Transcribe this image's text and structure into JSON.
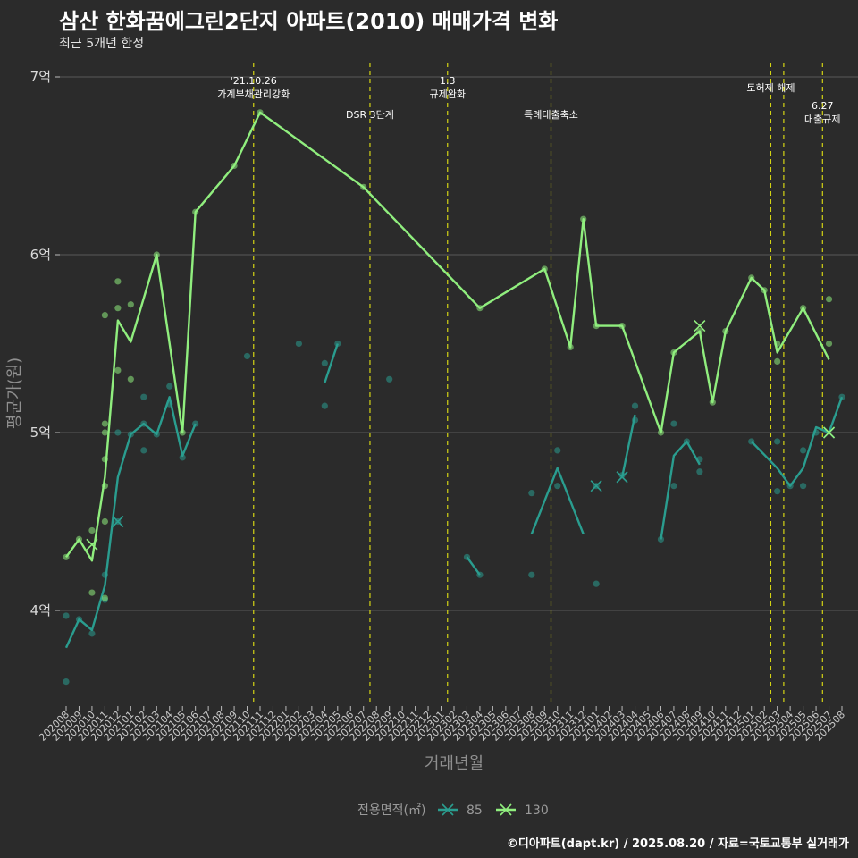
{
  "title": "삼산 한화꿈에그린2단지 아파트(2010) 매매가격 변화",
  "subtitle": "최근 5개년 한정",
  "caption": "©디아파트(dapt.kr) / 2025.08.20 / 자료=국토교통부 실거래가",
  "colors": {
    "s85": "#2a9d8f",
    "s130": "#90ee7e",
    "vline": "#d4d414",
    "grid": "#5a5a5a"
  },
  "chart_data": {
    "type": "line",
    "xlabel": "거래년월",
    "ylabel": "평균가(원)",
    "ylim": [
      3.45,
      7.05
    ],
    "yticks": [
      {
        "value": 4,
        "label": "4억"
      },
      {
        "value": 5,
        "label": "5억"
      },
      {
        "value": 6,
        "label": "6억"
      },
      {
        "value": 7,
        "label": "7억"
      }
    ],
    "categories": [
      "202008",
      "202009",
      "202010",
      "202011",
      "202012",
      "202101",
      "202102",
      "202103",
      "202104",
      "202105",
      "202106",
      "202107",
      "202108",
      "202109",
      "202110",
      "202111",
      "202112",
      "202201",
      "202202",
      "202203",
      "202204",
      "202205",
      "202206",
      "202207",
      "202208",
      "202209",
      "202210",
      "202211",
      "202212",
      "202301",
      "202302",
      "202303",
      "202304",
      "202305",
      "202306",
      "202307",
      "202308",
      "202309",
      "202310",
      "202311",
      "202312",
      "202401",
      "202402",
      "202403",
      "202404",
      "202405",
      "202406",
      "202407",
      "202408",
      "202409",
      "202410",
      "202411",
      "202412",
      "202501",
      "202502",
      "202503",
      "202504",
      "202505",
      "202506",
      "202507",
      "202508"
    ],
    "legend": {
      "title": "전용면적(㎡)"
    },
    "series": [
      {
        "name": "85",
        "line": [
          [
            [
              "202008",
              3.79
            ],
            [
              "202009",
              3.95
            ],
            [
              "202010",
              3.89
            ],
            [
              "202011",
              4.14
            ],
            [
              "202012",
              4.75
            ],
            [
              "202101",
              4.99
            ],
            [
              "202102",
              5.05
            ],
            [
              "202103",
              4.99
            ],
            [
              "202104",
              5.2
            ],
            [
              "202105",
              4.87
            ],
            [
              "202106",
              5.05
            ]
          ],
          [
            [
              "202204",
              5.28
            ],
            [
              "202205",
              5.5
            ]
          ],
          [
            [
              "202303",
              4.3
            ],
            [
              "202304",
              4.2
            ]
          ],
          [
            [
              "202308",
              4.43
            ],
            [
              "202310",
              4.8
            ],
            [
              "202312",
              4.43
            ]
          ],
          [
            [
              "202401",
              4.7
            ]
          ],
          [
            [
              "202403",
              4.75
            ],
            [
              "202404",
              5.1
            ]
          ],
          [
            [
              "202406",
              4.4
            ],
            [
              "202407",
              4.87
            ],
            [
              "202408",
              4.95
            ],
            [
              "202409",
              4.82
            ]
          ],
          [
            [
              "202501",
              4.95
            ],
            [
              "202503",
              4.8
            ],
            [
              "202504",
              4.7
            ],
            [
              "202505",
              4.8
            ],
            [
              "202506",
              5.03
            ],
            [
              "202507",
              5.0
            ],
            [
              "202508",
              5.2
            ]
          ]
        ],
        "points": [
          [
            "202008",
            3.97
          ],
          [
            "202008",
            3.6
          ],
          [
            "202009",
            3.95
          ],
          [
            "202010",
            3.87
          ],
          [
            "202011",
            4.2
          ],
          [
            "202011",
            4.06
          ],
          [
            "202012",
            4.5
          ],
          [
            "202012",
            5.0
          ],
          [
            "202101",
            4.99
          ],
          [
            "202102",
            5.2
          ],
          [
            "202102",
            4.9
          ],
          [
            "202102",
            5.05
          ],
          [
            "202103",
            4.99
          ],
          [
            "202104",
            5.26
          ],
          [
            "202104",
            5.16
          ],
          [
            "202105",
            4.86
          ],
          [
            "202106",
            5.05
          ],
          [
            "202110",
            5.43
          ],
          [
            "202202",
            5.5
          ],
          [
            "202204",
            5.39
          ],
          [
            "202204",
            5.15
          ],
          [
            "202205",
            5.5
          ],
          [
            "202209",
            5.3
          ],
          [
            "202303",
            4.3
          ],
          [
            "202304",
            4.2
          ],
          [
            "202308",
            4.66
          ],
          [
            "202308",
            4.2
          ],
          [
            "202310",
            4.7
          ],
          [
            "202310",
            4.9
          ],
          [
            "202401",
            4.15
          ],
          [
            "202401",
            4.7
          ],
          [
            "202403",
            4.76
          ],
          [
            "202404",
            5.07
          ],
          [
            "202404",
            5.15
          ],
          [
            "202406",
            4.4
          ],
          [
            "202407",
            5.05
          ],
          [
            "202407",
            4.7
          ],
          [
            "202408",
            4.95
          ],
          [
            "202409",
            4.78
          ],
          [
            "202409",
            4.85
          ],
          [
            "202501",
            4.95
          ],
          [
            "202503",
            4.95
          ],
          [
            "202503",
            4.67
          ],
          [
            "202504",
            4.7
          ],
          [
            "202505",
            4.9
          ],
          [
            "202505",
            4.7
          ],
          [
            "202506",
            5.0
          ],
          [
            "202508",
            5.2
          ]
        ],
        "crosses": [
          [
            "202012",
            4.5
          ],
          [
            "202401",
            4.7
          ],
          [
            "202403",
            4.75
          ],
          [
            "202507",
            5.0
          ]
        ]
      },
      {
        "name": "130",
        "line": [
          [
            [
              "202008",
              4.3
            ],
            [
              "202009",
              4.4
            ],
            [
              "202010",
              4.28
            ],
            [
              "202011",
              4.75
            ],
            [
              "202012",
              5.63
            ],
            [
              "202101",
              5.51
            ],
            [
              "202103",
              6.0
            ],
            [
              "202105",
              5.0
            ],
            [
              "202106",
              6.24
            ],
            [
              "202109",
              6.5
            ],
            [
              "202111",
              6.8
            ],
            [
              "202207",
              6.38
            ],
            [
              "202304",
              5.7
            ],
            [
              "202309",
              5.92
            ],
            [
              "202311",
              5.48
            ],
            [
              "202312",
              6.2
            ],
            [
              "202401",
              5.6
            ],
            [
              "202403",
              5.6
            ],
            [
              "202406",
              5.0
            ],
            [
              "202407",
              5.45
            ],
            [
              "202409",
              5.57
            ],
            [
              "202410",
              5.17
            ],
            [
              "202411",
              5.57
            ],
            [
              "202501",
              5.87
            ],
            [
              "202502",
              5.8
            ],
            [
              "202503",
              5.45
            ],
            [
              "202505",
              5.7
            ],
            [
              "202507",
              5.41
            ]
          ]
        ],
        "points": [
          [
            "202008",
            4.3
          ],
          [
            "202009",
            4.4
          ],
          [
            "202010",
            4.45
          ],
          [
            "202010",
            4.1
          ],
          [
            "202011",
            4.7
          ],
          [
            "202011",
            5.05
          ],
          [
            "202011",
            5.0
          ],
          [
            "202011",
            4.85
          ],
          [
            "202011",
            4.5
          ],
          [
            "202011",
            4.07
          ],
          [
            "202011",
            5.66
          ],
          [
            "202012",
            5.85
          ],
          [
            "202012",
            5.7
          ],
          [
            "202012",
            5.35
          ],
          [
            "202101",
            5.72
          ],
          [
            "202101",
            5.3
          ],
          [
            "202103",
            6.0
          ],
          [
            "202105",
            5.0
          ],
          [
            "202106",
            6.24
          ],
          [
            "202109",
            6.5
          ],
          [
            "202111",
            6.8
          ],
          [
            "202207",
            6.38
          ],
          [
            "202304",
            5.7
          ],
          [
            "202309",
            5.92
          ],
          [
            "202311",
            5.48
          ],
          [
            "202312",
            6.2
          ],
          [
            "202401",
            5.6
          ],
          [
            "202403",
            5.6
          ],
          [
            "202406",
            5.0
          ],
          [
            "202407",
            5.45
          ],
          [
            "202409",
            5.57
          ],
          [
            "202410",
            5.17
          ],
          [
            "202411",
            5.57
          ],
          [
            "202501",
            5.87
          ],
          [
            "202502",
            5.8
          ],
          [
            "202503",
            5.5
          ],
          [
            "202503",
            5.4
          ],
          [
            "202505",
            5.7
          ],
          [
            "202507",
            5.75
          ],
          [
            "202507",
            5.5
          ]
        ],
        "crosses": [
          [
            "202010",
            4.37
          ],
          [
            "202409",
            5.6
          ],
          [
            "202507",
            5.0
          ]
        ]
      }
    ],
    "events": [
      {
        "x": 14.5,
        "lines": [
          "'21.10.26",
          "가계부채관리강화"
        ],
        "row": 0
      },
      {
        "x": 23.5,
        "lines": [
          "DSR 3단계"
        ],
        "row": 2
      },
      {
        "x": 29.5,
        "lines": [
          "1.3",
          "규제완화"
        ],
        "row": 0
      },
      {
        "x": 37.5,
        "lines": [
          "특례대출축소"
        ],
        "row": 2
      },
      {
        "x": 54.5,
        "lines": [
          "토허제 해제"
        ],
        "row": 1
      },
      {
        "x": 55.5,
        "lines": [],
        "row": 1
      },
      {
        "x": 58.5,
        "lines": [
          "6.27",
          "대출규제"
        ],
        "row": 3
      }
    ]
  }
}
